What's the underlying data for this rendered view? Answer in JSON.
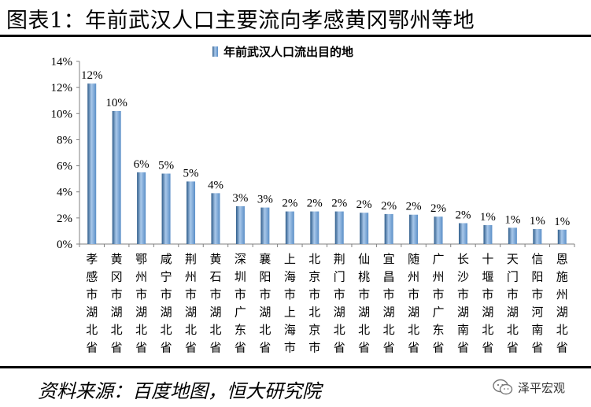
{
  "title": "图表1：年前武汉人口主要流向孝感黄冈鄂州等地",
  "source": "资料来源：百度地图，恒大研究院",
  "watermark": "泽平宏观",
  "chart_data": {
    "type": "bar",
    "series": [
      {
        "name": "年前武汉人口流出目的地",
        "values": [
          0.123,
          0.102,
          0.055,
          0.054,
          0.048,
          0.039,
          0.029,
          0.028,
          0.025,
          0.025,
          0.025,
          0.024,
          0.023,
          0.0225,
          0.021,
          0.016,
          0.0145,
          0.0125,
          0.0115,
          0.011
        ],
        "data_labels": [
          "12%",
          "10%",
          "6%",
          "5%",
          "5%",
          "4%",
          "3%",
          "3%",
          "2%",
          "2%",
          "2%",
          "2%",
          "2%",
          "2%",
          "2%",
          "2%",
          "1%",
          "1%",
          "1%",
          "1%"
        ]
      }
    ],
    "categories": [
      "孝感市湖北省",
      "黄冈市湖北省",
      "鄂州市湖北省",
      "咸宁市湖北省",
      "荆州市湖北省",
      "黄石市湖北省",
      "深圳市广东省",
      "襄阳市湖北省",
      "上海市上海市",
      "北京市北京市",
      "荆门市湖北省",
      "仙桃市湖北省",
      "宜昌市湖北省",
      "随州市湖北省",
      "广州市广东省",
      "长沙市湖南省",
      "十堰市湖北省",
      "天门市湖北省",
      "信阳市河南省",
      "恩施州湖北省"
    ],
    "ylim": [
      0,
      0.14
    ],
    "yticks": [
      0,
      0.02,
      0.04,
      0.06,
      0.08,
      0.1,
      0.12,
      0.14
    ],
    "ytick_labels": [
      "0%",
      "2%",
      "4%",
      "6%",
      "8%",
      "10%",
      "12%",
      "14%"
    ],
    "legend_position": "top-center",
    "grid": false,
    "colors": {
      "bar_dark": "#2e5c8a",
      "bar_mid": "#5b8fc7",
      "bar_light": "#a9c8ea",
      "axis": "#808080"
    }
  }
}
